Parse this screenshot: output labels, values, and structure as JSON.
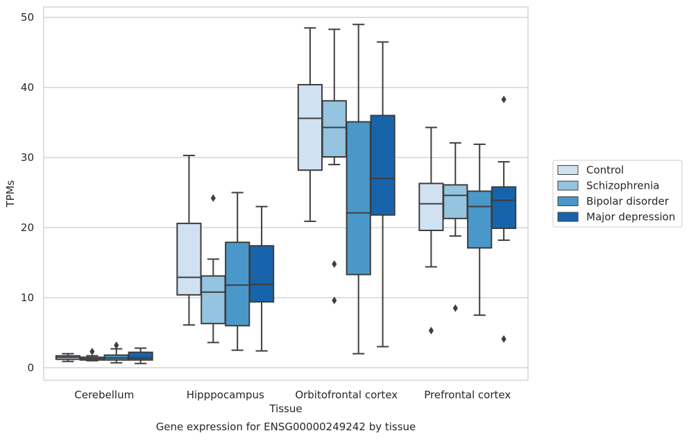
{
  "caption": "Gene expression for ENSG00000249242 by tissue",
  "chart_data": {
    "type": "box",
    "xlabel": "Tissue",
    "ylabel": "TPMs",
    "ylim": [
      -1.8,
      51.5
    ],
    "yticks": [
      0,
      10,
      20,
      30,
      40,
      50
    ],
    "grid": true,
    "legend_position": "right",
    "categories": [
      "Cerebellum",
      "Hipppocampus",
      "Orbitofrontal cortex",
      "Prefrontal cortex"
    ],
    "series": [
      {
        "name": "Control",
        "color": "#d0e1f2",
        "boxes": [
          {
            "whislo": 0.9,
            "q1": 1.2,
            "med": 1.5,
            "q3": 1.7,
            "whishi": 2.0,
            "fliers": []
          },
          {
            "whislo": 6.1,
            "q1": 10.4,
            "med": 12.9,
            "q3": 20.6,
            "whishi": 30.3,
            "fliers": []
          },
          {
            "whislo": 20.9,
            "q1": 28.2,
            "med": 35.6,
            "q3": 40.4,
            "whishi": 48.5,
            "fliers": []
          },
          {
            "whislo": 14.4,
            "q1": 19.6,
            "med": 23.4,
            "q3": 26.3,
            "whishi": 34.3,
            "fliers": [
              5.3
            ]
          }
        ]
      },
      {
        "name": "Schizophrenia",
        "color": "#94c4df",
        "boxes": [
          {
            "whislo": 1.0,
            "q1": 1.1,
            "med": 1.3,
            "q3": 1.5,
            "whishi": 1.7,
            "fliers": [
              2.3
            ]
          },
          {
            "whislo": 3.6,
            "q1": 6.3,
            "med": 10.8,
            "q3": 13.1,
            "whishi": 15.5,
            "fliers": [
              24.2
            ]
          },
          {
            "whislo": 29.0,
            "q1": 30.1,
            "med": 34.3,
            "q3": 38.1,
            "whishi": 48.3,
            "fliers": [
              9.6,
              14.8
            ]
          },
          {
            "whislo": 18.8,
            "q1": 21.3,
            "med": 24.6,
            "q3": 26.1,
            "whishi": 32.1,
            "fliers": [
              8.5
            ]
          }
        ]
      },
      {
        "name": "Bipolar disorder",
        "color": "#4a98c9",
        "boxes": [
          {
            "whislo": 0.7,
            "q1": 1.1,
            "med": 1.4,
            "q3": 1.8,
            "whishi": 2.7,
            "fliers": [
              3.2
            ]
          },
          {
            "whislo": 2.5,
            "q1": 6.0,
            "med": 11.8,
            "q3": 17.9,
            "whishi": 25.0,
            "fliers": []
          },
          {
            "whislo": 2.0,
            "q1": 13.3,
            "med": 22.1,
            "q3": 35.1,
            "whishi": 49.0,
            "fliers": []
          },
          {
            "whislo": 7.5,
            "q1": 17.1,
            "med": 23.0,
            "q3": 25.2,
            "whishi": 31.9,
            "fliers": []
          }
        ]
      },
      {
        "name": "Major depression",
        "color": "#1764ab",
        "boxes": [
          {
            "whislo": 0.6,
            "q1": 1.1,
            "med": 1.4,
            "q3": 2.2,
            "whishi": 2.8,
            "fliers": []
          },
          {
            "whislo": 2.4,
            "q1": 9.4,
            "med": 11.9,
            "q3": 17.4,
            "whishi": 23.0,
            "fliers": []
          },
          {
            "whislo": 3.0,
            "q1": 21.8,
            "med": 27.0,
            "q3": 36.0,
            "whishi": 46.5,
            "fliers": []
          },
          {
            "whislo": 18.2,
            "q1": 19.9,
            "med": 23.9,
            "q3": 25.8,
            "whishi": 29.4,
            "fliers": [
              38.3,
              4.1
            ]
          }
        ]
      }
    ]
  }
}
